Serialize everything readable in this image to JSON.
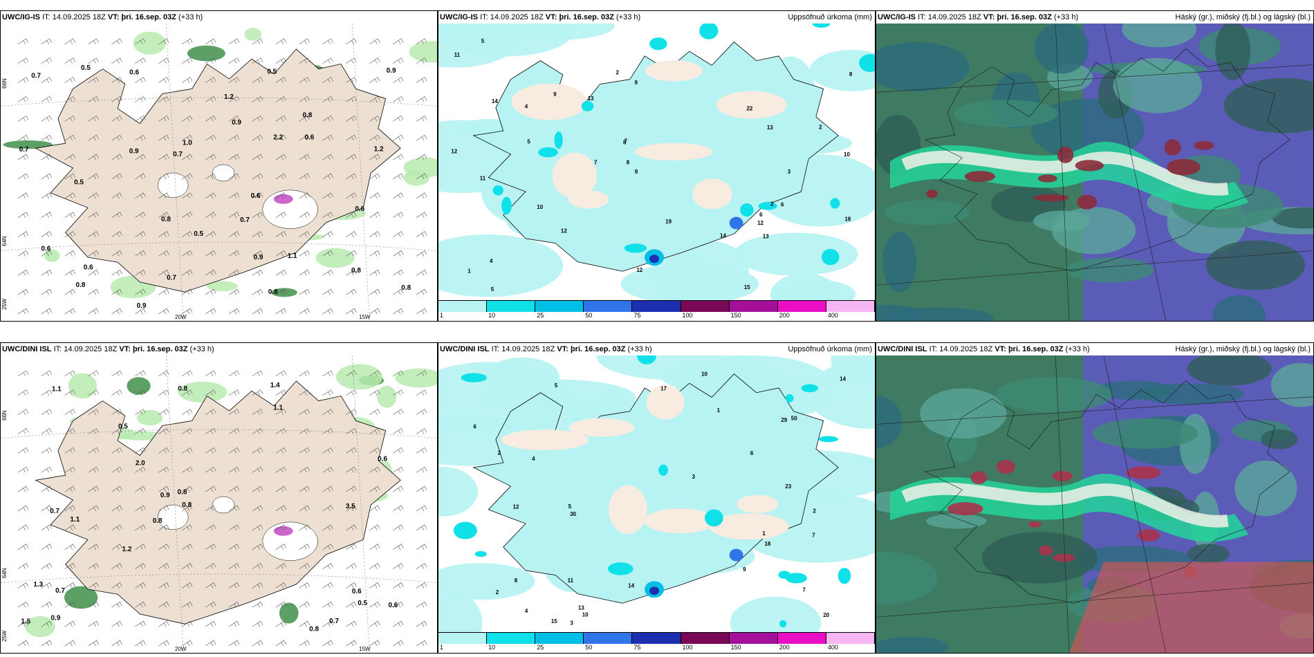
{
  "rows": [
    {
      "model": "UWC/IG-IS",
      "it_label": "IT:",
      "it": "14.09.2025 18Z",
      "vt_label": "VT:",
      "vt": "þri. 16.sep. 03Z",
      "lead": "(+33 h)"
    },
    {
      "model": "UWC/DINI ISL",
      "it_label": "IT:",
      "it": "14.09.2025 18Z",
      "vt_label": "VT:",
      "vt": "þri. 16.sep. 03Z",
      "lead": "(+33 h)"
    }
  ],
  "precip_title": "Uppsöfnuð úrkoma (mm)",
  "cloud_title": "Háský (gr.), miðský (fj.bl.) og lágský (bl.)",
  "legend": {
    "ticks": [
      "1",
      "10",
      "25",
      "50",
      "75",
      "100",
      "150",
      "200",
      "400"
    ],
    "colors": [
      "#b8f3f3",
      "#10e0e8",
      "#00bfe6",
      "#2f74e8",
      "#1c2fae",
      "#7a0856",
      "#a5109a",
      "#ea0ec4",
      "#f5b6f3"
    ]
  },
  "axis_labels": {
    "lat_66": "66N",
    "lat_64": "64N",
    "lat_25w": "25W",
    "lon_20w": "20W",
    "lon_15w": "15W"
  },
  "wind_labels_top": [
    "0.5",
    "0.6",
    "0.7",
    "0.5",
    "0.6",
    "0.9",
    "0.8",
    "0.9",
    "0.9",
    "0.8",
    "0.7",
    "0.8",
    "0.8",
    "1.0",
    "0.9",
    "0.6",
    "0.7",
    "0.8",
    "0.6",
    "0.5",
    "0.6",
    "0.8",
    "0.5",
    "0.9",
    "1.1",
    "0.7",
    "1.2",
    "2.2",
    "0.6",
    "1.2",
    "0.7"
  ],
  "wind_labels_bottom": [
    "0.7",
    "0.8",
    "0.7",
    "1.1",
    "0.5",
    "0.5",
    "0.8",
    "0.7",
    "0.9",
    "0.8",
    "1.2",
    "1.4",
    "0.6",
    "1.1",
    "1.5",
    "0.8",
    "0.6",
    "3.5",
    "2.0",
    "1.3",
    "0.8",
    "1.1",
    "0.6",
    "0.9"
  ],
  "precip_labels_top": [
    "13",
    "2",
    "1",
    "3",
    "4",
    "5",
    "2",
    "6",
    "5",
    "7",
    "8",
    "9",
    "10",
    "11",
    "12",
    "14",
    "12",
    "9",
    "8",
    "11",
    "13",
    "19",
    "13",
    "12",
    "22",
    "14",
    "15",
    "7",
    "4",
    "12",
    "6",
    "8",
    "10",
    "9",
    "18",
    "2",
    "5"
  ],
  "precip_labels_bottom": [
    "1",
    "2",
    "3",
    "4",
    "5",
    "6",
    "7",
    "10",
    "12",
    "14",
    "17",
    "20",
    "29",
    "30",
    "13",
    "18",
    "11",
    "9",
    "8",
    "50",
    "14",
    "10",
    "15",
    "23",
    "3",
    "2",
    "4",
    "5",
    "6",
    "7",
    "1",
    "2"
  ]
}
